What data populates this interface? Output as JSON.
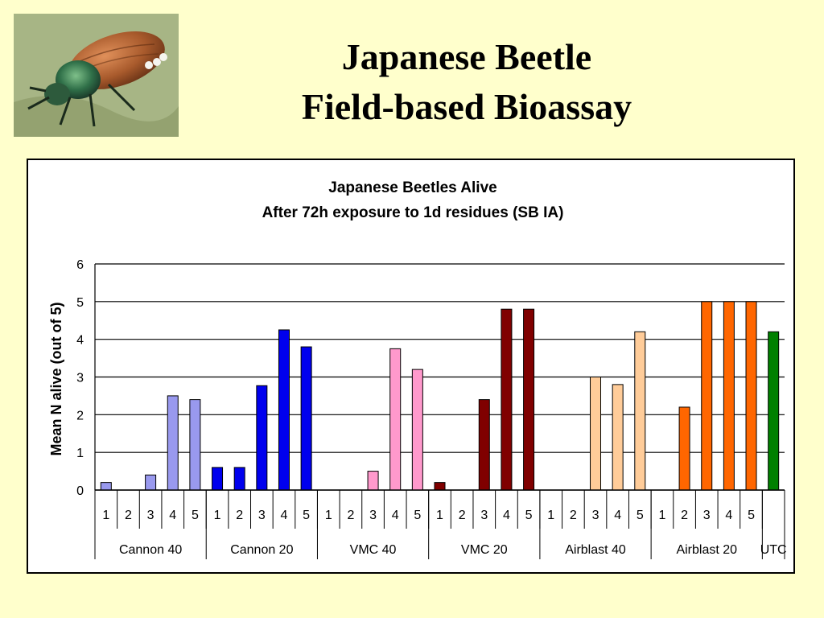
{
  "slide": {
    "title_line1": "Japanese Beetle",
    "title_line2": "Field-based Bioassay"
  },
  "colors": {
    "background": "#ffffcc",
    "Cannon 40": "#9999ee",
    "Cannon 20": "#0000ee",
    "VMC 40": "#ff99cc",
    "VMC 20": "#800000",
    "Airblast 40": "#ffcc99",
    "Airblast 20": "#ff6600",
    "UTC": "#008000"
  },
  "chart_data": {
    "type": "bar",
    "title": "Japanese Beetles Alive",
    "subtitle": "After 72h exposure to 1d residues (SB IA)",
    "xlabel": "",
    "ylabel": "Mean N alive (out of 5)",
    "ylim": [
      0,
      6
    ],
    "yticks": [
      0,
      1,
      2,
      3,
      4,
      5,
      6
    ],
    "grid": true,
    "groups": [
      {
        "name": "Cannon 40",
        "categories": [
          "1",
          "2",
          "3",
          "4",
          "5"
        ],
        "values": [
          0.2,
          0,
          0.4,
          2.5,
          2.4
        ]
      },
      {
        "name": "Cannon 20",
        "categories": [
          "1",
          "2",
          "3",
          "4",
          "5"
        ],
        "values": [
          0.6,
          0.6,
          2.77,
          4.25,
          3.8
        ]
      },
      {
        "name": "VMC 40",
        "categories": [
          "1",
          "2",
          "3",
          "4",
          "5"
        ],
        "values": [
          0,
          0,
          0.5,
          3.75,
          3.2
        ]
      },
      {
        "name": "VMC 20",
        "categories": [
          "1",
          "2",
          "3",
          "4",
          "5"
        ],
        "values": [
          0.2,
          0,
          2.4,
          4.8,
          4.8
        ]
      },
      {
        "name": "Airblast 40",
        "categories": [
          "1",
          "2",
          "3",
          "4",
          "5"
        ],
        "values": [
          0,
          0,
          3.0,
          2.8,
          4.2
        ]
      },
      {
        "name": "Airblast 20",
        "categories": [
          "1",
          "2",
          "3",
          "4",
          "5"
        ],
        "values": [
          0,
          2.2,
          5.0,
          5.0,
          5.0
        ]
      },
      {
        "name": "UTC",
        "categories": [
          ""
        ],
        "values": [
          4.2
        ]
      }
    ]
  }
}
